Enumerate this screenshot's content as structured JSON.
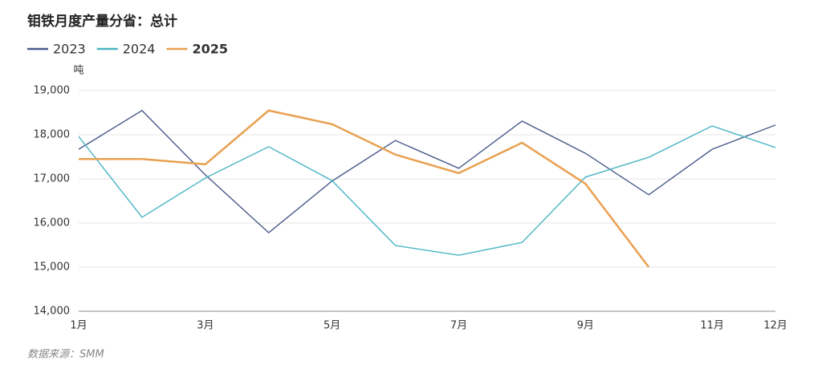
{
  "chart_data": {
    "type": "line",
    "title": "钼铁月度产量分省：总计",
    "y_label": "吨",
    "source": "数据来源：SMM",
    "categories": [
      "1月",
      null,
      "3月",
      null,
      "5月",
      null,
      "7月",
      null,
      "9月",
      null,
      "11月",
      "12月"
    ],
    "series": [
      {
        "name": "2023",
        "color": "#4a5a8a",
        "values": [
          17670,
          18550,
          17090,
          15780,
          16950,
          17870,
          17240,
          18310,
          17580,
          16640,
          17670,
          18220
        ]
      },
      {
        "name": "2024",
        "color": "#4ab5c4",
        "values": [
          17960,
          16130,
          17020,
          17730,
          16960,
          15490,
          15270,
          15560,
          17040,
          17490,
          18200,
          17710
        ]
      },
      {
        "name": "2025",
        "color": "#e8a050",
        "values": [
          17450,
          17450,
          17330,
          18550,
          18240,
          17550,
          17130,
          17820,
          16890,
          15000,
          null,
          null
        ]
      }
    ],
    "ylim": [
      14000,
      19000
    ],
    "yticks": [
      {
        "value": 14000,
        "label": "14,000"
      },
      {
        "value": 15000,
        "label": "15,000"
      },
      {
        "value": 16000,
        "label": "16,000"
      },
      {
        "value": 17000,
        "label": "17,000"
      },
      {
        "value": 18000,
        "label": "18,000"
      },
      {
        "value": 19000,
        "label": "19,000"
      }
    ],
    "grid": true
  }
}
